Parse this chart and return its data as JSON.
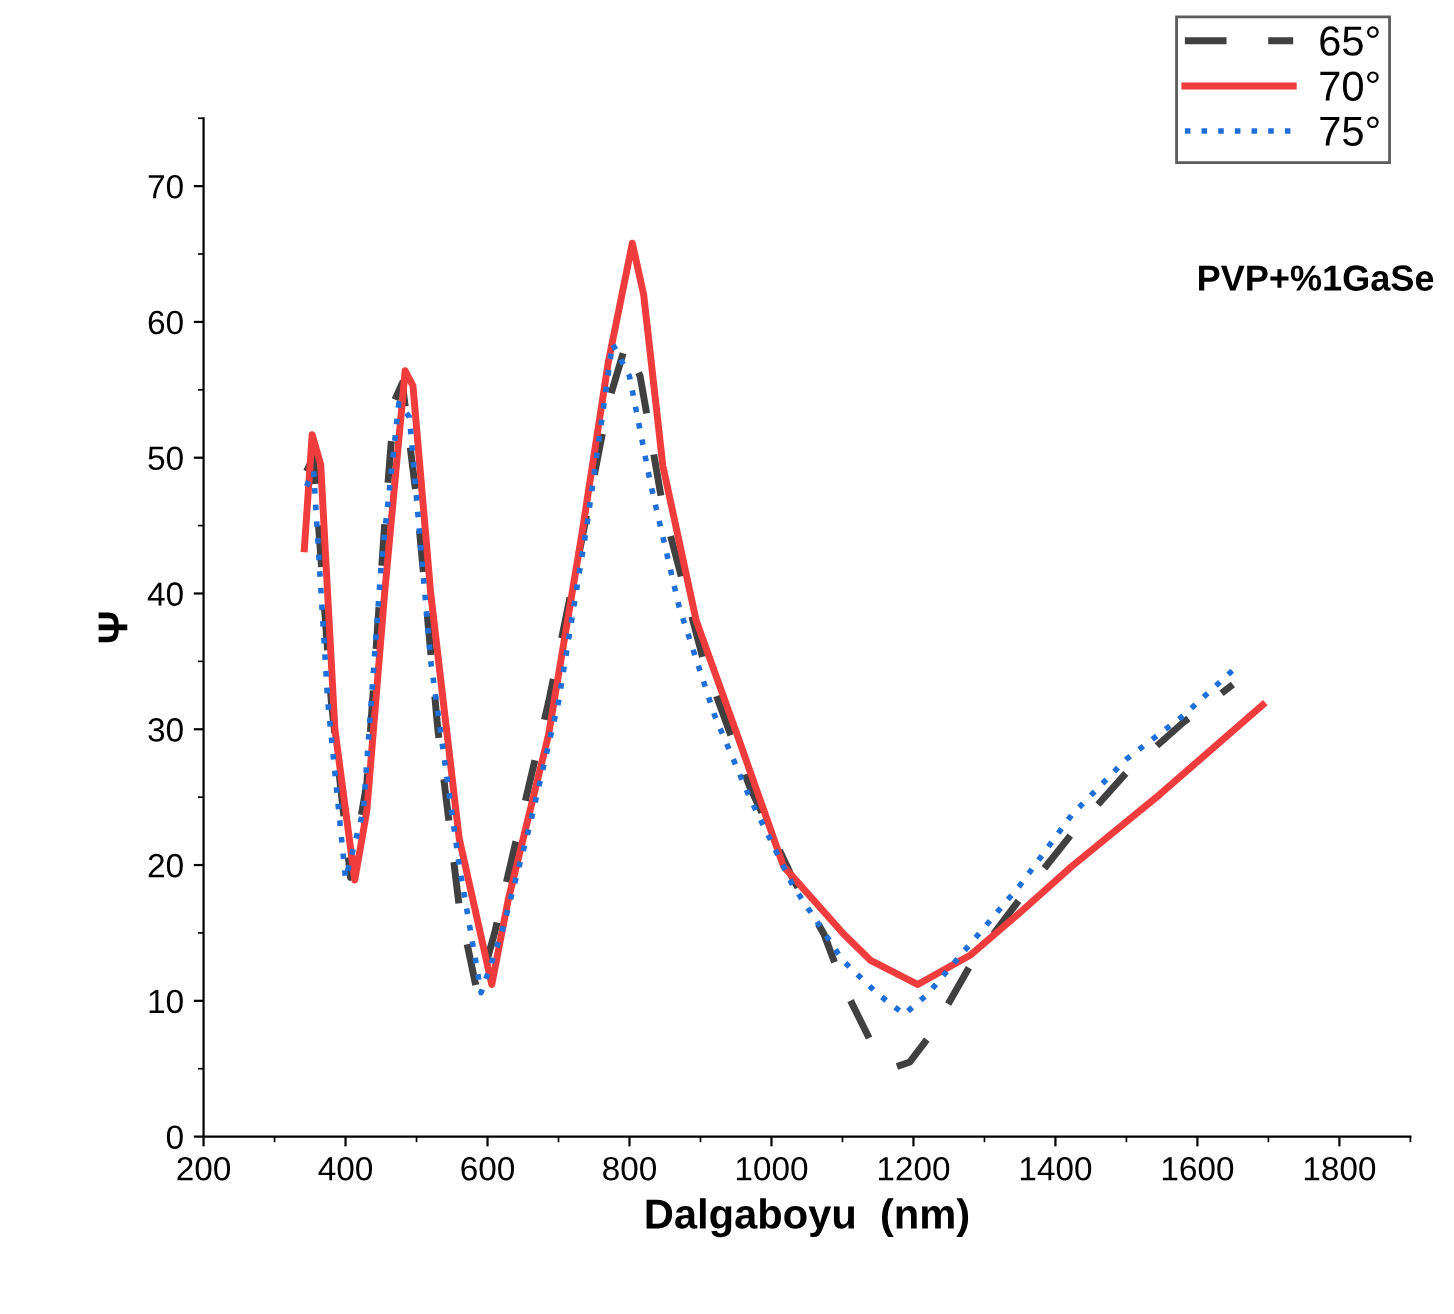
{
  "chart_data": {
    "type": "line",
    "xlabel": "Dalgaboyu  (nm)",
    "ylabel": "Ψ",
    "annotations": [
      "PVP+%1GaSe"
    ],
    "xlim": [
      200,
      1900
    ],
    "xticks": [
      200,
      400,
      600,
      800,
      1000,
      1200,
      1400,
      1600,
      1800
    ],
    "ylim": [
      0,
      75
    ],
    "yticks": [
      0,
      10,
      20,
      30,
      40,
      50,
      60,
      70
    ],
    "grid": false,
    "legend": "top right",
    "marker": "none",
    "series": [
      {
        "name": "65°",
        "color": "#404040",
        "line_style": "dashed",
        "x": [
          345,
          355,
          380,
          407,
          430,
          455,
          469,
          480,
          500,
          530,
          560,
          586,
          610,
          650,
          686,
          733,
          770,
          795,
          815,
          847,
          904,
          969,
          1030,
          1074,
          1102,
          1140,
          1173,
          1195,
          1224,
          1281,
          1350,
          1423,
          1500,
          1580,
          1650
        ],
        "values": [
          49,
          50,
          32,
          19.1,
          26,
          45,
          54.2,
          55.5,
          47,
          30,
          17,
          10.5,
          15,
          24,
          32,
          44,
          54,
          58.4,
          56,
          46.4,
          35.1,
          25.8,
          19,
          14.9,
          11,
          7,
          5.1,
          5.5,
          7.5,
          12.7,
          17.5,
          22.3,
          26.8,
          30.5,
          33.3
        ]
      },
      {
        "name": "70°",
        "color": "#f03c3c",
        "line_style": "solid",
        "x": [
          342,
          353,
          365,
          385,
          413,
          430,
          455,
          484,
          495,
          520,
          560,
          606,
          629,
          686,
          733,
          770,
          804,
          820,
          847,
          894,
          951,
          1017,
          1102,
          1139,
          1206,
          1281,
          1350,
          1423,
          1547,
          1692
        ],
        "values": [
          43.3,
          51.7,
          49.5,
          30,
          18.9,
          24,
          40,
          56.4,
          55.3,
          40,
          22,
          11.2,
          17.4,
          29.6,
          44.4,
          57,
          65.8,
          62,
          49.4,
          38,
          29.7,
          19.9,
          14.9,
          13,
          11.2,
          13.4,
          16.5,
          19.9,
          25.2,
          31.8
        ]
      },
      {
        "name": "75°",
        "color": "#1e6fd9",
        "line_style": "dotted",
        "x": [
          345,
          355,
          375,
          400,
          425,
          450,
          475,
          490,
          520,
          560,
          591,
          620,
          660,
          700,
          740,
          776,
          800,
          830,
          870,
          920,
          969,
          1030,
          1100,
          1150,
          1187,
          1220,
          1272,
          1350,
          1423,
          1500,
          1580,
          1655
        ],
        "values": [
          47.9,
          49,
          32,
          19,
          24,
          42,
          54,
          53,
          35,
          20,
          10.6,
          15,
          23,
          32,
          45,
          58.4,
          56,
          48,
          39,
          31,
          25,
          18.5,
          13,
          10.5,
          9,
          10.5,
          13.7,
          18.5,
          23.7,
          27.8,
          31,
          34.6
        ]
      }
    ]
  }
}
